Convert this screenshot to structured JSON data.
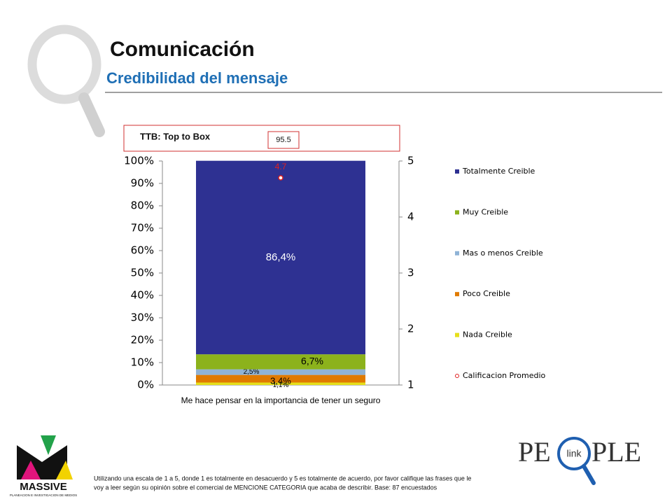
{
  "slide": {
    "title": "Comunicación",
    "subtitle": "Credibilidad del mensaje",
    "ttb_label": "TTB: Top to Box",
    "ttb_value": "95.5",
    "footnote": [
      "Utilizando una escala de 1 a 5, donde 1 es totalmente en desacuerdo y 5 es totalmente de acuerdo, por favor califique las frases que le",
      "voy a leer según su opinión sobre el comercial de MENCIONE CATEGORIA que acaba de describir. Base: 87 encuestados"
    ],
    "logo_left": "MASSIVE",
    "logo_left_sub": "PLANEACION E INVESTIGACION DE MEDIOS",
    "logo_right_a": "PE",
    "logo_right_b": "PLE",
    "logo_right_link": "link"
  },
  "chart_data": {
    "type": "bar",
    "stacked": true,
    "categories": [
      "Me hace pensar en la importancia de tener un seguro"
    ],
    "series": [
      {
        "name": "Totalmente Creible",
        "color": "#2e3192",
        "values": [
          86.4
        ],
        "value_labels": [
          "86,4%"
        ]
      },
      {
        "name": "Muy Creible",
        "color": "#8cb21c",
        "values": [
          6.7
        ],
        "value_labels": [
          "6,7%"
        ]
      },
      {
        "name": "Mas o menos Creible",
        "color": "#8fb3d6",
        "values": [
          2.5
        ],
        "value_labels": [
          "2,5%"
        ]
      },
      {
        "name": "Poco Creible",
        "color": "#e07a00",
        "values": [
          3.4
        ],
        "value_labels": [
          "3,4%"
        ]
      },
      {
        "name": "Nada Creible",
        "color": "#e6df1a",
        "values": [
          1.1
        ],
        "value_labels": [
          "1,1%"
        ]
      },
      {
        "name": "Calificacion Promedio",
        "color": "#e02020",
        "type": "scatter",
        "axis": "y2",
        "values": [
          4.7
        ]
      }
    ],
    "ylim": [
      0,
      100
    ],
    "yticks": [
      {
        "value": 0,
        "label": "0%"
      },
      {
        "value": 10,
        "label": "10%"
      },
      {
        "value": 20,
        "label": "20%"
      },
      {
        "value": 30,
        "label": "30%"
      },
      {
        "value": 40,
        "label": "40%"
      },
      {
        "value": 50,
        "label": "50%"
      },
      {
        "value": 60,
        "label": "60%"
      },
      {
        "value": 70,
        "label": "70%"
      },
      {
        "value": 80,
        "label": "80%"
      },
      {
        "value": 90,
        "label": "90%"
      },
      {
        "value": 100,
        "label": "100%"
      }
    ],
    "y2lim": [
      1,
      5
    ],
    "y2ticks": [
      1,
      2,
      3,
      4,
      5
    ],
    "legend": "right"
  }
}
